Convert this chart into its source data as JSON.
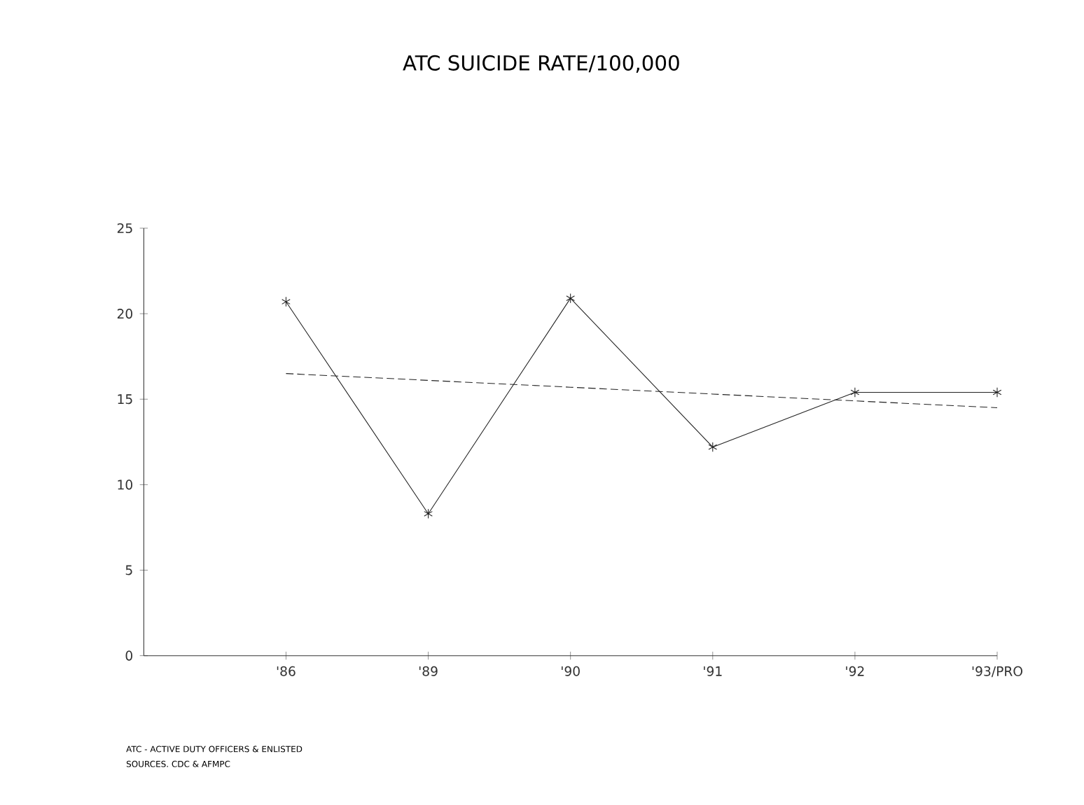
{
  "chart_data": {
    "type": "line",
    "title": "ATC SUICIDE RATE/100,000",
    "categories": [
      "'86",
      "'89",
      "'90",
      "'91",
      "'92",
      "'93/PRO"
    ],
    "series": [
      {
        "values": [
          20.7,
          8.3,
          20.9,
          12.2,
          15.4,
          15.4
        ],
        "color": "#222222",
        "marker": "cross",
        "line_style": "solid"
      },
      {
        "type": "line",
        "values": [
          16.5,
          16.1,
          15.7,
          15.3,
          14.9,
          14.5
        ],
        "color": "#222222",
        "marker": "none",
        "line_style": "dashed"
      }
    ],
    "ylim": [
      0,
      25
    ],
    "yticks": [
      0,
      5,
      10,
      15,
      20,
      25
    ],
    "grid": false,
    "annotations": [
      "ATC - ACTIVE DUTY OFFICERS & ENLISTED",
      "SOURCES. CDC & AFMPC"
    ]
  }
}
